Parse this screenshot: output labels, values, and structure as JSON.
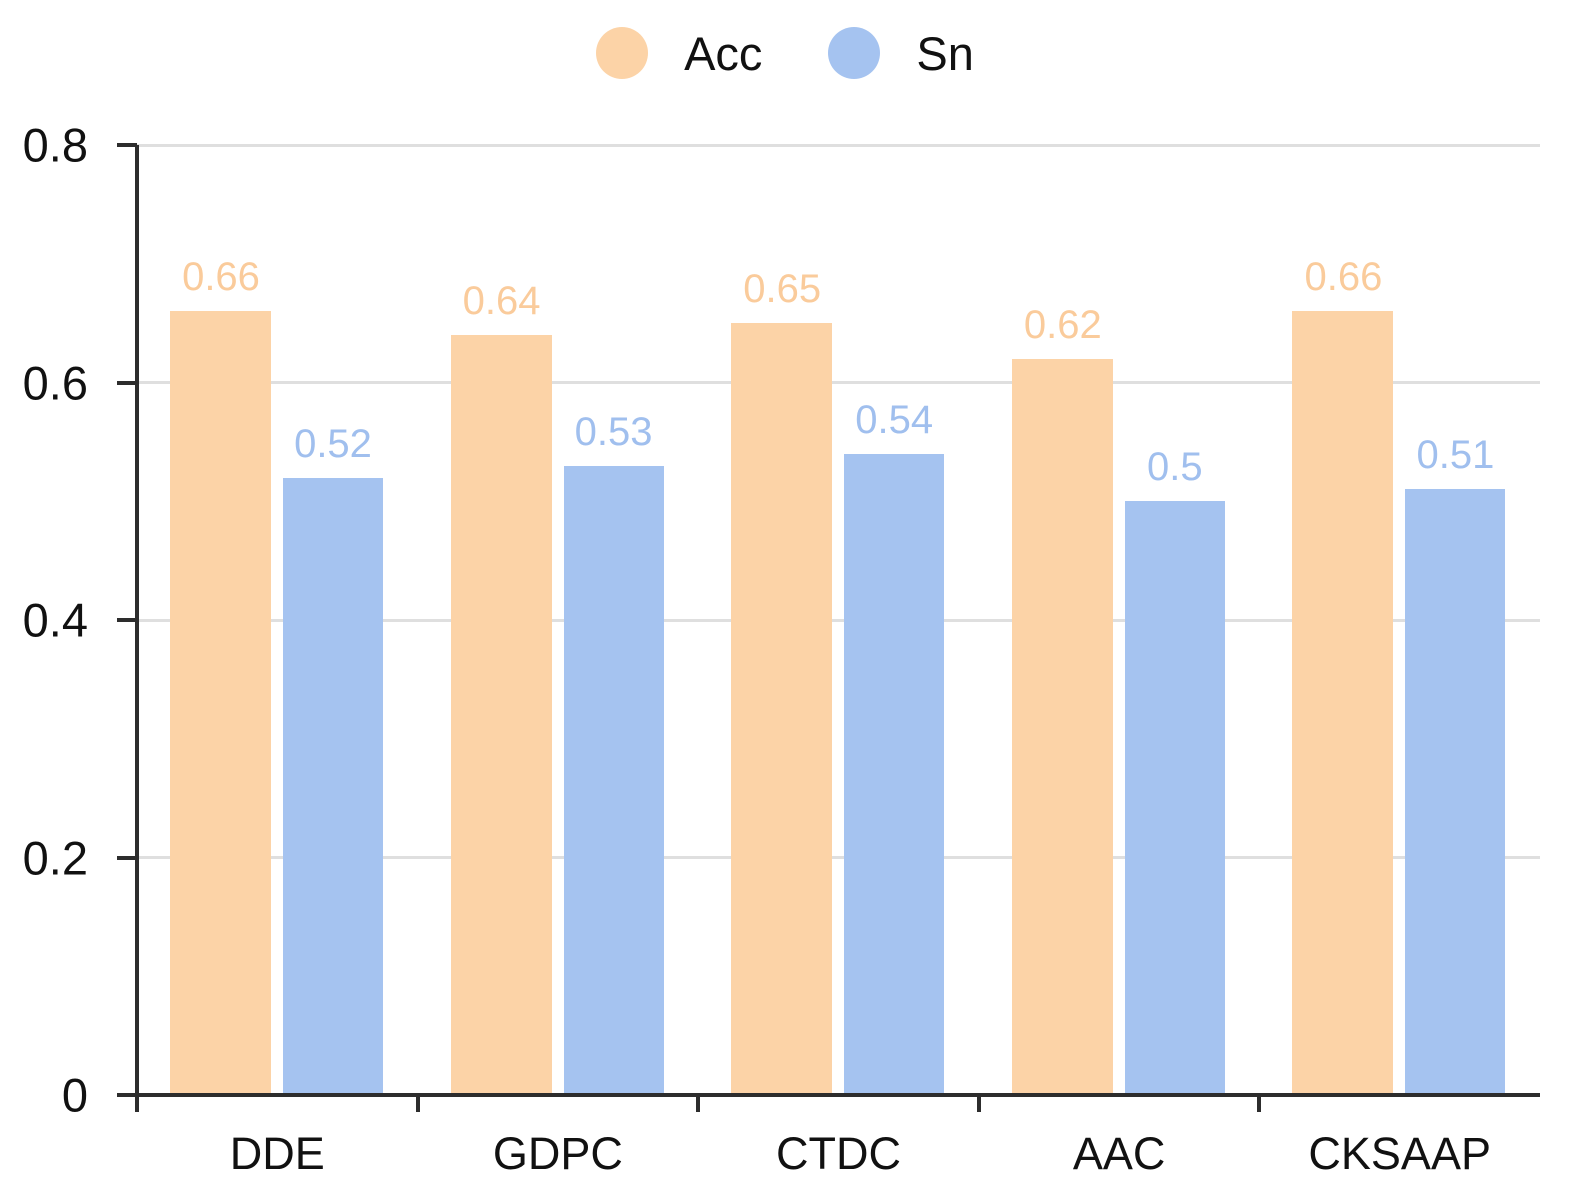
{
  "figure": {
    "type": "grouped-bar-chart"
  },
  "legend": {
    "items": [
      {
        "label": "Acc",
        "color": "#FCD3A7"
      },
      {
        "label": "Sn",
        "color": "#A5C3F0"
      }
    ]
  },
  "chart_data": {
    "type": "bar",
    "categories": [
      "DDE",
      "GDPC",
      "CTDC",
      "AAC",
      "CKSAAP"
    ],
    "series": [
      {
        "name": "Acc",
        "values": [
          0.66,
          0.64,
          0.65,
          0.62,
          0.66
        ],
        "color": "#FCD3A7",
        "label_color": "#FACB9B"
      },
      {
        "name": "Sn",
        "values": [
          0.52,
          0.53,
          0.54,
          0.5,
          0.51
        ],
        "color": "#A5C3F0",
        "label_color": "#A0BFEE"
      }
    ],
    "title": "",
    "xlabel": "",
    "ylabel": "",
    "ylim": [
      0,
      0.8
    ],
    "yticks": [
      0,
      0.2,
      0.4,
      0.6,
      0.8
    ],
    "ytick_labels": [
      "0",
      "0.2",
      "0.4",
      "0.6",
      "0.8"
    ],
    "grid": true,
    "data_labels": true,
    "legend_position": "top-center"
  }
}
